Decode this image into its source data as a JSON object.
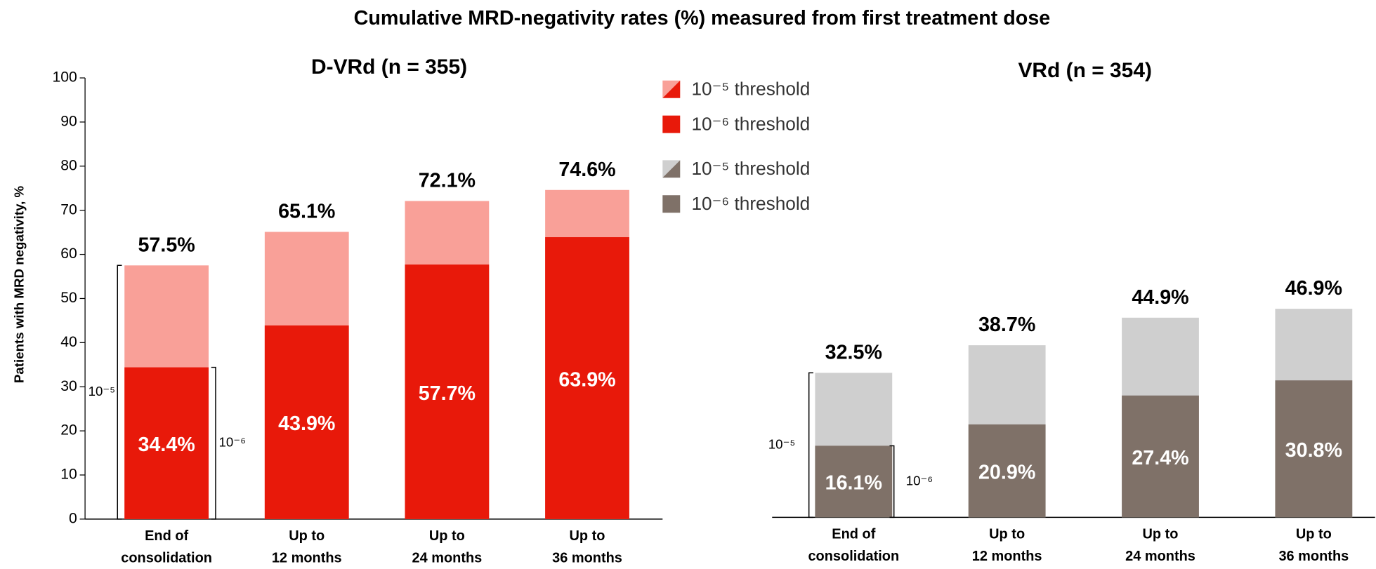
{
  "title": "Cumulative MRD-negativity rates (%) measured from first treatment dose",
  "chart_data": [
    {
      "type": "bar",
      "title": "D-VRd (n = 355)",
      "ylabel": "Patients with MRD negativity, %",
      "categories": [
        [
          "End of",
          "consolidation"
        ],
        [
          "Up to",
          "12 months"
        ],
        [
          "Up to",
          "24 months"
        ],
        [
          "Up to",
          "36 months"
        ]
      ],
      "series": [
        {
          "name": "10⁻⁵ threshold",
          "color": "#f9a098",
          "values": [
            57.5,
            65.1,
            72.1,
            74.6
          ],
          "value_labels": [
            "57.5%",
            "65.1%",
            "72.1%",
            "74.6%"
          ]
        },
        {
          "name": "10⁻⁶ threshold",
          "color": "#e8190a",
          "values": [
            34.4,
            43.9,
            57.7,
            63.9
          ],
          "value_labels": [
            "34.4%",
            "43.9%",
            "57.7%",
            "63.9%"
          ]
        }
      ],
      "annotations": [
        "10⁻⁵",
        "10⁻⁶"
      ],
      "ylim": [
        0,
        100
      ],
      "yticks": [
        0,
        10,
        20,
        30,
        40,
        50,
        60,
        70,
        80,
        90,
        100
      ],
      "grid": false
    },
    {
      "type": "bar",
      "title": "VRd (n = 354)",
      "categories": [
        [
          "End of",
          "consolidation"
        ],
        [
          "Up to",
          "12 months"
        ],
        [
          "Up to",
          "24 months"
        ],
        [
          "Up to",
          "36 months"
        ]
      ],
      "series": [
        {
          "name": "10⁻⁵ threshold",
          "color": "#cfcfcf",
          "values": [
            32.5,
            38.7,
            44.9,
            46.9
          ],
          "value_labels": [
            "32.5%",
            "38.7%",
            "44.9%",
            "46.9%"
          ]
        },
        {
          "name": "10⁻⁶ threshold",
          "color": "#7f7168",
          "values": [
            16.1,
            20.9,
            27.4,
            30.8
          ],
          "value_labels": [
            "16.1%",
            "20.9%",
            "27.4%",
            "30.8%"
          ]
        }
      ],
      "annotations": [
        "10⁻⁵",
        "10⁻⁶"
      ],
      "ylim": [
        0,
        100
      ],
      "grid": false
    }
  ]
}
